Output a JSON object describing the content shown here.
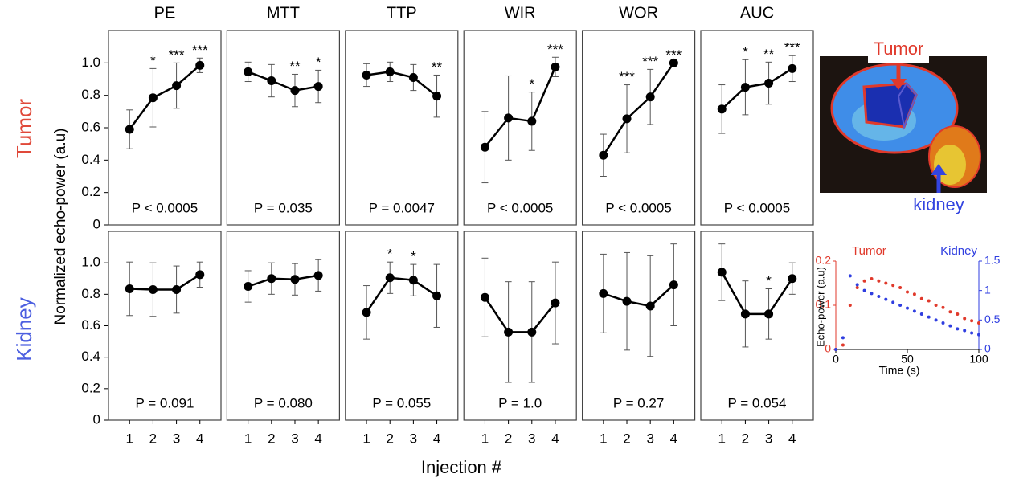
{
  "figure": {
    "rows": [
      "Tumor",
      "Kidney"
    ],
    "ylabel": "Normalized echo-power (a.u)",
    "xlabel": "Injection #"
  },
  "image": {
    "labels": [
      "Tumor",
      "kidney"
    ]
  },
  "chart_data": [
    {
      "type": "line",
      "title": "PE",
      "x": [
        1,
        2,
        3,
        4
      ],
      "xlim": [
        0.1,
        4.9
      ],
      "ylim": [
        0,
        1.2
      ],
      "yticks": [
        0,
        0.2,
        0.4,
        0.6,
        0.8,
        {
          "value": 1,
          "label": "1.0"
        }
      ],
      "values": [
        0.59,
        0.785,
        0.86,
        0.985
      ],
      "errors": [
        0.12,
        0.18,
        0.14,
        0.045
      ],
      "significance": [
        null,
        "*",
        "***",
        "***"
      ],
      "annotation": "P < 0.0005",
      "color": "#000000"
    },
    {
      "type": "line",
      "title": "MTT",
      "x": [
        1,
        2,
        3,
        4
      ],
      "xlim": [
        0.1,
        4.9
      ],
      "ylim": [
        0,
        1.2
      ],
      "values": [
        0.945,
        0.89,
        0.83,
        0.855
      ],
      "errors": [
        0.06,
        0.1,
        0.1,
        0.1
      ],
      "significance": [
        null,
        null,
        "**",
        "*"
      ],
      "annotation": "P = 0.035",
      "color": "#000000"
    },
    {
      "type": "line",
      "title": "TTP",
      "x": [
        1,
        2,
        3,
        4
      ],
      "xlim": [
        0.1,
        4.9
      ],
      "ylim": [
        0,
        1.2
      ],
      "values": [
        0.925,
        0.945,
        0.91,
        0.795
      ],
      "errors": [
        0.07,
        0.06,
        0.08,
        0.13
      ],
      "significance": [
        null,
        null,
        null,
        "**"
      ],
      "annotation": "P = 0.0047",
      "color": "#000000"
    },
    {
      "type": "line",
      "title": "WIR",
      "x": [
        1,
        2,
        3,
        4
      ],
      "xlim": [
        0.1,
        4.9
      ],
      "ylim": [
        0,
        1.2
      ],
      "values": [
        0.48,
        0.66,
        0.64,
        0.975
      ],
      "errors": [
        0.22,
        0.26,
        0.18,
        0.06
      ],
      "significance": [
        null,
        null,
        "*",
        "***"
      ],
      "annotation": "P < 0.0005",
      "color": "#000000"
    },
    {
      "type": "line",
      "title": "WOR",
      "x": [
        1,
        2,
        3,
        4
      ],
      "xlim": [
        0.1,
        4.9
      ],
      "ylim": [
        0,
        1.2
      ],
      "values": [
        0.43,
        0.655,
        0.79,
        1.0
      ],
      "errors": [
        0.13,
        0.21,
        0.17,
        0
      ],
      "significance": [
        null,
        "***",
        "***",
        "***"
      ],
      "annotation": "P < 0.0005",
      "color": "#000000"
    },
    {
      "type": "line",
      "title": "AUC",
      "x": [
        1,
        2,
        3,
        4
      ],
      "xlim": [
        0.1,
        4.9
      ],
      "ylim": [
        0,
        1.2
      ],
      "values": [
        0.715,
        0.85,
        0.875,
        0.965
      ],
      "errors": [
        0.15,
        0.17,
        0.13,
        0.08
      ],
      "significance": [
        null,
        "*",
        "**",
        "***"
      ],
      "annotation": "P < 0.0005",
      "color": "#000000"
    },
    {
      "type": "line",
      "x": [
        1,
        2,
        3,
        4
      ],
      "xlim": [
        0.1,
        4.9
      ],
      "xticks": [
        1,
        2,
        3,
        4
      ],
      "ylim": [
        0,
        1.2
      ],
      "yticks": [
        0,
        0.2,
        0.4,
        0.6,
        0.8,
        {
          "value": 1,
          "label": "1.0"
        }
      ],
      "values": [
        0.835,
        0.83,
        0.83,
        0.925
      ],
      "errors": [
        0.17,
        0.17,
        0.15,
        0.08
      ],
      "significance": [
        null,
        null,
        null,
        null
      ],
      "annotation": "P = 0.091",
      "color": "#000000"
    },
    {
      "type": "line",
      "x": [
        1,
        2,
        3,
        4
      ],
      "xlim": [
        0.1,
        4.9
      ],
      "xticks": [
        1,
        2,
        3,
        4
      ],
      "ylim": [
        0,
        1.2
      ],
      "values": [
        0.85,
        0.9,
        0.895,
        0.92
      ],
      "errors": [
        0.1,
        0.1,
        0.1,
        0.1
      ],
      "significance": [
        null,
        null,
        null,
        null
      ],
      "annotation": "P = 0.080",
      "color": "#000000"
    },
    {
      "type": "line",
      "x": [
        1,
        2,
        3,
        4
      ],
      "xlim": [
        0.1,
        4.9
      ],
      "xticks": [
        1,
        2,
        3,
        4
      ],
      "ylim": [
        0,
        1.2
      ],
      "values": [
        0.685,
        0.905,
        0.89,
        0.79
      ],
      "errors": [
        0.17,
        0.1,
        0.1,
        0.2
      ],
      "significance": [
        null,
        "*",
        "*",
        null
      ],
      "annotation": "P = 0.055",
      "color": "#000000"
    },
    {
      "type": "line",
      "x": [
        1,
        2,
        3,
        4
      ],
      "xlim": [
        0.1,
        4.9
      ],
      "xticks": [
        1,
        2,
        3,
        4
      ],
      "ylim": [
        0,
        1.2
      ],
      "values": [
        0.78,
        0.56,
        0.56,
        0.745
      ],
      "errors": [
        0.25,
        0.32,
        0.32,
        0.26
      ],
      "significance": [
        null,
        null,
        null,
        null
      ],
      "annotation": "P = 1.0",
      "color": "#000000"
    },
    {
      "type": "line",
      "x": [
        1,
        2,
        3,
        4
      ],
      "xlim": [
        0.1,
        4.9
      ],
      "xticks": [
        1,
        2,
        3,
        4
      ],
      "ylim": [
        0,
        1.2
      ],
      "values": [
        0.805,
        0.755,
        0.725,
        0.86
      ],
      "errors": [
        0.25,
        0.31,
        0.32,
        0.26
      ],
      "significance": [
        null,
        null,
        null,
        null
      ],
      "annotation": "P = 0.27",
      "color": "#000000"
    },
    {
      "type": "line",
      "x": [
        1,
        2,
        3,
        4
      ],
      "xlim": [
        0.1,
        4.9
      ],
      "xticks": [
        1,
        2,
        3,
        4
      ],
      "ylim": [
        0,
        1.2
      ],
      "values": [
        0.94,
        0.675,
        0.675,
        0.9
      ],
      "errors": [
        0.18,
        0.21,
        0.16,
        0.1
      ],
      "significance": [
        null,
        null,
        "*",
        null
      ],
      "annotation": "P = 0.054",
      "color": "#000000"
    },
    {
      "type": "scatter",
      "ylabel": "Echo-power (a.u)",
      "xlabel": "Time (s)",
      "x": [
        0,
        5,
        10,
        15,
        20,
        25,
        30,
        35,
        40,
        45,
        50,
        55,
        60,
        65,
        70,
        75,
        80,
        85,
        90,
        95,
        100
      ],
      "xlim": [
        0,
        100
      ],
      "xticks": [
        0,
        50,
        100
      ],
      "ylim": [
        0,
        0.2
      ],
      "yticks": [
        0,
        0.1,
        0.2
      ],
      "y2lim": [
        0,
        1.5
      ],
      "y2ticks": [
        0,
        0.5,
        1,
        1.5
      ],
      "series": [
        {
          "name": "Tumor",
          "color": "#e0392b",
          "values": [
            0,
            0.01,
            0.1,
            0.14,
            0.155,
            0.16,
            0.155,
            0.15,
            0.145,
            0.14,
            0.13,
            0.125,
            0.115,
            0.11,
            0.1,
            0.095,
            0.085,
            0.08,
            0.07,
            0.065,
            0.06
          ]
        },
        {
          "name": "Kidney",
          "color": "#2f3ee0",
          "axis": "y2",
          "values": [
            0,
            0.2,
            1.25,
            1.1,
            1.0,
            0.95,
            0.9,
            0.85,
            0.8,
            0.75,
            0.7,
            0.65,
            0.6,
            0.55,
            0.5,
            0.45,
            0.4,
            0.35,
            0.32,
            0.28,
            0.25
          ]
        }
      ]
    }
  ]
}
